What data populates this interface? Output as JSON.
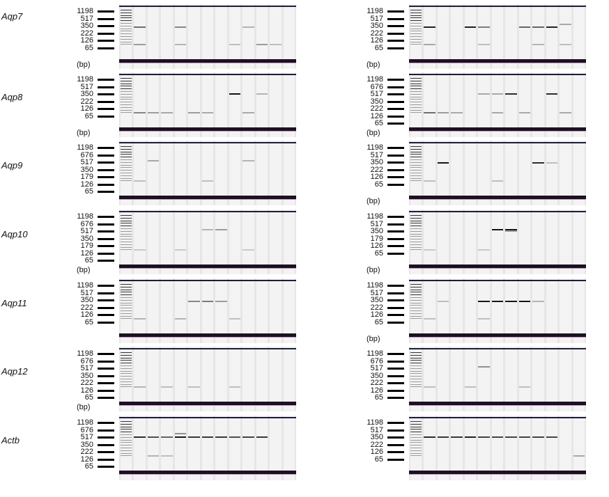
{
  "genes": [
    "Aqp7",
    "Aqp8",
    "Aqp9",
    "Aqp10",
    "Aqp11",
    "Aqp12",
    "Actb"
  ],
  "bp_unit": "(bp)",
  "panels": [
    {
      "row": 0,
      "col": 0,
      "markers": [
        "1198",
        "517",
        "350",
        "222",
        "126",
        "65"
      ],
      "bp": true
    },
    {
      "row": 0,
      "col": 1,
      "markers": [
        "1198",
        "517",
        "350",
        "222",
        "126",
        "65"
      ],
      "bp": true
    },
    {
      "row": 1,
      "col": 0,
      "markers": [
        "1198",
        "517",
        "350",
        "222",
        "126",
        "65"
      ],
      "bp": true
    },
    {
      "row": 1,
      "col": 1,
      "markers": [
        "1198",
        "676",
        "517",
        "350",
        "222",
        "126",
        "65"
      ],
      "bp": true
    },
    {
      "row": 2,
      "col": 0,
      "markers": [
        "1198",
        "676",
        "517",
        "350",
        "179",
        "126",
        "65"
      ],
      "bp": false
    },
    {
      "row": 2,
      "col": 1,
      "markers": [
        "1198",
        "517",
        "350",
        "222",
        "126",
        "65"
      ],
      "bp": true
    },
    {
      "row": 3,
      "col": 0,
      "markers": [
        "1198",
        "676",
        "517",
        "350",
        "179",
        "126",
        "65"
      ],
      "bp": true
    },
    {
      "row": 3,
      "col": 1,
      "markers": [
        "1198",
        "517",
        "350",
        "179",
        "126",
        "65"
      ],
      "bp": true
    },
    {
      "row": 4,
      "col": 0,
      "markers": [
        "1198",
        "517",
        "350",
        "222",
        "126",
        "65"
      ],
      "bp": false
    },
    {
      "row": 4,
      "col": 1,
      "markers": [
        "1198",
        "517",
        "350",
        "222",
        "126",
        "65"
      ],
      "bp": true
    },
    {
      "row": 5,
      "col": 0,
      "markers": [
        "1198",
        "676",
        "517",
        "350",
        "222",
        "126",
        "65"
      ],
      "bp": true
    },
    {
      "row": 5,
      "col": 1,
      "markers": [
        "1198",
        "676",
        "517",
        "350",
        "222",
        "126",
        "65"
      ],
      "bp": false
    },
    {
      "row": 6,
      "col": 0,
      "markers": [
        "1198",
        "676",
        "517",
        "350",
        "222",
        "126",
        "65"
      ],
      "bp": false
    },
    {
      "row": 6,
      "col": 1,
      "markers": [
        "1198",
        "517",
        "350",
        "222",
        "126",
        "65"
      ],
      "bp": false
    }
  ],
  "lanes_per_gel": 13,
  "bands": {
    "0-0": [
      [
        1,
        517,
        0.55
      ],
      [
        4,
        517,
        0.45
      ],
      [
        1,
        126,
        0.35
      ],
      [
        4,
        126,
        0.25
      ],
      [
        8,
        126,
        0.2
      ],
      [
        9,
        517,
        0.25
      ],
      [
        10,
        126,
        0.35
      ],
      [
        11,
        126,
        0.2
      ]
    ],
    "0-1": [
      [
        1,
        517,
        0.9
      ],
      [
        4,
        517,
        0.9
      ],
      [
        5,
        517,
        0.5
      ],
      [
        8,
        517,
        0.6
      ],
      [
        9,
        517,
        0.6
      ],
      [
        10,
        517,
        0.9
      ],
      [
        11,
        676,
        0.3
      ],
      [
        1,
        126,
        0.3
      ],
      [
        5,
        126,
        0.2
      ],
      [
        9,
        126,
        0.25
      ],
      [
        11,
        126,
        0.2
      ]
    ],
    "1-0": [
      [
        1,
        126,
        0.45
      ],
      [
        2,
        126,
        0.35
      ],
      [
        3,
        126,
        0.3
      ],
      [
        5,
        126,
        0.35
      ],
      [
        6,
        126,
        0.3
      ],
      [
        8,
        600,
        0.95
      ],
      [
        10,
        600,
        0.25
      ],
      [
        9,
        126,
        0.3
      ]
    ],
    "1-1": [
      [
        1,
        126,
        0.55
      ],
      [
        2,
        126,
        0.35
      ],
      [
        3,
        126,
        0.3
      ],
      [
        5,
        600,
        0.3
      ],
      [
        6,
        600,
        0.3
      ],
      [
        7,
        600,
        0.85
      ],
      [
        8,
        126,
        0.3
      ],
      [
        10,
        600,
        0.85
      ],
      [
        6,
        126,
        0.3
      ],
      [
        11,
        126,
        0.3
      ]
    ],
    "2-0": [
      [
        2,
        676,
        0.3
      ],
      [
        9,
        676,
        0.25
      ],
      [
        1,
        126,
        0.2
      ],
      [
        6,
        126,
        0.2
      ]
    ],
    "2-1": [
      [
        2,
        560,
        0.95
      ],
      [
        9,
        560,
        0.85
      ],
      [
        10,
        560,
        0.2
      ],
      [
        1,
        126,
        0.2
      ],
      [
        6,
        126,
        0.2
      ]
    ],
    "3-0": [
      [
        6,
        676,
        0.25
      ],
      [
        7,
        676,
        0.35
      ],
      [
        1,
        126,
        0.15
      ],
      [
        4,
        126,
        0.15
      ],
      [
        9,
        126,
        0.15
      ]
    ],
    "3-1": [
      [
        6,
        676,
        0.95
      ],
      [
        7,
        676,
        0.95
      ],
      [
        7,
        600,
        0.35
      ],
      [
        1,
        126,
        0.15
      ],
      [
        5,
        126,
        0.15
      ]
    ],
    "4-0": [
      [
        5,
        517,
        0.45
      ],
      [
        6,
        517,
        0.5
      ],
      [
        7,
        517,
        0.35
      ],
      [
        1,
        126,
        0.25
      ],
      [
        4,
        126,
        0.25
      ],
      [
        8,
        126,
        0.2
      ]
    ],
    "4-1": [
      [
        5,
        517,
        0.95
      ],
      [
        6,
        517,
        0.95
      ],
      [
        7,
        517,
        0.95
      ],
      [
        8,
        517,
        0.95
      ],
      [
        2,
        517,
        0.2
      ],
      [
        9,
        517,
        0.25
      ],
      [
        1,
        126,
        0.2
      ],
      [
        5,
        126,
        0.2
      ]
    ],
    "5-0": [
      [
        1,
        126,
        0.25
      ],
      [
        3,
        126,
        0.2
      ],
      [
        5,
        126,
        0.2
      ],
      [
        8,
        126,
        0.2
      ]
    ],
    "5-1": [
      [
        5,
        676,
        0.4
      ],
      [
        1,
        126,
        0.2
      ],
      [
        4,
        126,
        0.2
      ],
      [
        8,
        126,
        0.2
      ]
    ],
    "6-0": [
      [
        1,
        600,
        0.85
      ],
      [
        2,
        600,
        0.7
      ],
      [
        3,
        600,
        0.6
      ],
      [
        4,
        600,
        0.95
      ],
      [
        4,
        800,
        0.4
      ],
      [
        5,
        600,
        0.8
      ],
      [
        6,
        600,
        0.8
      ],
      [
        7,
        600,
        0.8
      ],
      [
        8,
        600,
        0.7
      ],
      [
        9,
        600,
        0.75
      ],
      [
        10,
        600,
        0.8
      ],
      [
        2,
        126,
        0.25
      ],
      [
        3,
        126,
        0.2
      ]
    ],
    "6-1": [
      [
        1,
        600,
        0.85
      ],
      [
        2,
        600,
        0.8
      ],
      [
        3,
        600,
        0.8
      ],
      [
        4,
        600,
        0.9
      ],
      [
        5,
        600,
        0.75
      ],
      [
        6,
        600,
        0.75
      ],
      [
        7,
        600,
        0.75
      ],
      [
        8,
        600,
        0.75
      ],
      [
        9,
        600,
        0.75
      ],
      [
        10,
        600,
        0.75
      ],
      [
        12,
        126,
        0.3
      ]
    ]
  }
}
